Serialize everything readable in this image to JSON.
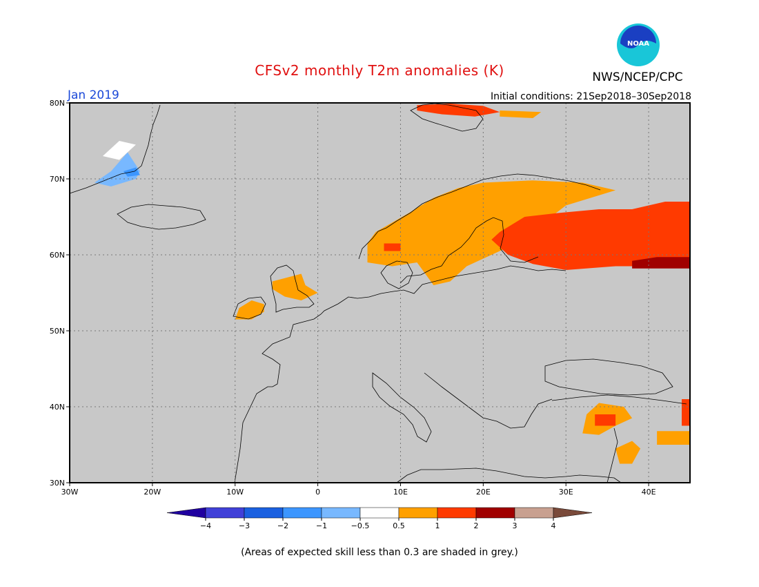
{
  "title": "CFSv2 monthly T2m anomalies (K)",
  "agency": "NWS/NCEP/CPC",
  "logo": {
    "text": "NOAA",
    "colors": {
      "outer": "#19c6d8",
      "inner": "#1a3fc2",
      "ring": "#ffffff"
    }
  },
  "month_label": "Jan 2019",
  "initial_conditions": "Initial conditions: 21Sep2018–30Sep2018",
  "footnote": "(Areas of expected skill less than 0.3 are shaded in grey.)",
  "map": {
    "lon_range": [
      -30,
      45
    ],
    "lat_range": [
      30,
      80
    ],
    "background": "#c8c8c8",
    "lon_ticks": [
      {
        "value": -30,
        "label": "30W"
      },
      {
        "value": -20,
        "label": "20W"
      },
      {
        "value": -10,
        "label": "10W"
      },
      {
        "value": 0,
        "label": "0"
      },
      {
        "value": 10,
        "label": "10E"
      },
      {
        "value": 20,
        "label": "20E"
      },
      {
        "value": 30,
        "label": "30E"
      },
      {
        "value": 40,
        "label": "40E"
      }
    ],
    "lat_ticks": [
      {
        "value": 30,
        "label": "30N"
      },
      {
        "value": 40,
        "label": "40N"
      },
      {
        "value": 50,
        "label": "50N"
      },
      {
        "value": 60,
        "label": "60N"
      },
      {
        "value": 70,
        "label": "70N"
      },
      {
        "value": 80,
        "label": "80N"
      }
    ],
    "grid": true,
    "anomaly_regions": [
      {
        "name": "svalbard",
        "class": "1 to 2",
        "color": "#ff3a00",
        "points": [
          [
            12,
            79.7
          ],
          [
            16,
            79.9
          ],
          [
            20,
            79.6
          ],
          [
            22,
            78.8
          ],
          [
            19,
            78.2
          ],
          [
            15,
            78.5
          ],
          [
            12,
            79.0
          ]
        ]
      },
      {
        "name": "svalbard-east",
        "class": "0.5 to 1",
        "color": "#ffa000",
        "points": [
          [
            22,
            79.0
          ],
          [
            27,
            78.8
          ],
          [
            26,
            78.0
          ],
          [
            22,
            78.2
          ]
        ]
      },
      {
        "name": "scandinavia",
        "class": "0.5 to 1",
        "color": "#ffa000",
        "points": [
          [
            6,
            61.5
          ],
          [
            7,
            63.0
          ],
          [
            11,
            65.5
          ],
          [
            14,
            67.5
          ],
          [
            17,
            68.8
          ],
          [
            20,
            69.5
          ],
          [
            26,
            69.8
          ],
          [
            32,
            69.5
          ],
          [
            36,
            68.5
          ],
          [
            30,
            66.5
          ],
          [
            27,
            64.0
          ],
          [
            24,
            61.5
          ],
          [
            21,
            60.0
          ],
          [
            18,
            58.5
          ],
          [
            16,
            56.5
          ],
          [
            14,
            56.0
          ],
          [
            13,
            57.5
          ],
          [
            12,
            59.0
          ],
          [
            9,
            58.5
          ],
          [
            6,
            59.0
          ]
        ]
      },
      {
        "name": "russia-warm",
        "class": "1 to 2",
        "color": "#ff3a00",
        "points": [
          [
            22,
            63.0
          ],
          [
            25,
            65.0
          ],
          [
            29,
            65.5
          ],
          [
            34,
            66.0
          ],
          [
            38,
            66.0
          ],
          [
            42,
            67.0
          ],
          [
            45,
            67.0
          ],
          [
            45,
            59.5
          ],
          [
            41,
            58.5
          ],
          [
            36,
            58.5
          ],
          [
            30,
            58.0
          ],
          [
            26,
            58.8
          ],
          [
            23,
            60.0
          ],
          [
            21,
            62.0
          ]
        ]
      },
      {
        "name": "russia-hot",
        "class": "2 to 3",
        "color": "#a00000",
        "points": [
          [
            38,
            58.2
          ],
          [
            45,
            58.2
          ],
          [
            45,
            59.7
          ],
          [
            41,
            59.7
          ],
          [
            38,
            59.2
          ]
        ]
      },
      {
        "name": "norway-pixel",
        "class": "1 to 2",
        "color": "#ff3a00",
        "points": [
          [
            8,
            60.5
          ],
          [
            10,
            60.5
          ],
          [
            10,
            61.5
          ],
          [
            8,
            61.5
          ]
        ]
      },
      {
        "name": "northern-uk",
        "class": "0.5 to 1",
        "color": "#ffa000",
        "points": [
          [
            -5.5,
            56.5
          ],
          [
            -2,
            57.5
          ],
          [
            -1.5,
            56.0
          ],
          [
            0,
            55.0
          ],
          [
            -2,
            54.0
          ],
          [
            -4,
            54.5
          ],
          [
            -5.5,
            55.5
          ]
        ]
      },
      {
        "name": "ireland",
        "class": "0.5 to 1",
        "color": "#ffa000",
        "points": [
          [
            -10,
            51.5
          ],
          [
            -9.5,
            53.0
          ],
          [
            -8,
            54.0
          ],
          [
            -6.5,
            53.5
          ],
          [
            -6.5,
            52.5
          ],
          [
            -8,
            51.5
          ]
        ]
      },
      {
        "name": "turkey-east",
        "class": "0.5 to 1",
        "color": "#ffa000",
        "points": [
          [
            32,
            36.5
          ],
          [
            32.5,
            39.0
          ],
          [
            34,
            40.5
          ],
          [
            37,
            40.0
          ],
          [
            38,
            38.5
          ],
          [
            36,
            37.5
          ],
          [
            34,
            36.3
          ]
        ]
      },
      {
        "name": "turkey-core",
        "class": "1 to 2",
        "color": "#ff3a00",
        "points": [
          [
            33.5,
            37.5
          ],
          [
            36,
            37.5
          ],
          [
            36,
            39.0
          ],
          [
            33.5,
            39.0
          ]
        ]
      },
      {
        "name": "levant",
        "class": "0.5 to 1",
        "color": "#ffa000",
        "points": [
          [
            36,
            34.5
          ],
          [
            38,
            35.5
          ],
          [
            39,
            34.5
          ],
          [
            38,
            32.5
          ],
          [
            36.5,
            32.5
          ]
        ]
      },
      {
        "name": "caucasus-east",
        "class": "0.5 to 1",
        "color": "#ffa000",
        "points": [
          [
            41,
            35.0
          ],
          [
            45,
            35.0
          ],
          [
            45,
            36.8
          ],
          [
            41,
            36.8
          ]
        ]
      },
      {
        "name": "caucasus-red",
        "class": "1 to 2",
        "color": "#ff3a00",
        "points": [
          [
            44,
            37.5
          ],
          [
            45,
            37.5
          ],
          [
            45,
            41.0
          ],
          [
            44,
            41.0
          ]
        ]
      },
      {
        "name": "greenland-cool",
        "class": "-1 to -0.5",
        "color": "#78b8ff",
        "points": [
          [
            -27,
            69.5
          ],
          [
            -25,
            71.0
          ],
          [
            -23,
            73.5
          ],
          [
            -21.5,
            71.0
          ],
          [
            -22,
            70.0
          ],
          [
            -25,
            69.0
          ]
        ]
      },
      {
        "name": "greenland-cooler",
        "class": "-2 to -1",
        "color": "#3c96ff",
        "points": [
          [
            -23.5,
            71.0
          ],
          [
            -22,
            71.5
          ],
          [
            -21.5,
            70.5
          ],
          [
            -23,
            70.3
          ]
        ]
      },
      {
        "name": "greenland-neutral",
        "class": "-0.5 to 0.5",
        "color": "#ffffff",
        "points": [
          [
            -26,
            73.0
          ],
          [
            -24,
            75.0
          ],
          [
            -22,
            74.5
          ],
          [
            -24,
            72.5
          ]
        ]
      }
    ]
  },
  "colorbar": {
    "under_color": "#2000a0",
    "over_color": "#7a4a3a",
    "bins": [
      "#4040d8",
      "#1a60e0",
      "#3c96ff",
      "#78b8ff",
      "#ffffff",
      "#ffa000",
      "#ff3a00",
      "#a00000",
      "#c8a090"
    ],
    "labels": [
      "−4",
      "−3",
      "−2",
      "−1",
      "−0.5",
      "0.5",
      "1",
      "2",
      "3",
      "4"
    ]
  }
}
